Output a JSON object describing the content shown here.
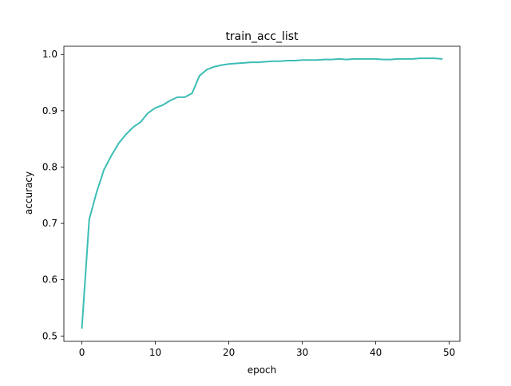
{
  "chart_data": {
    "type": "line",
    "title": "train_acc_list",
    "xlabel": "epoch",
    "ylabel": "accuracy",
    "xlim": [
      -2.45,
      51.45
    ],
    "ylim": [
      0.4905,
      1.0145
    ],
    "xticks": [
      0,
      10,
      20,
      30,
      40,
      50
    ],
    "yticks": [
      0.5,
      0.6,
      0.7,
      0.8,
      0.9,
      1.0
    ],
    "xtick_labels": [
      "0",
      "10",
      "20",
      "30",
      "40",
      "50"
    ],
    "ytick_labels": [
      "0.5",
      "0.6",
      "0.7",
      "0.8",
      "0.9",
      "1.0"
    ],
    "grid": false,
    "line_color": "#3dbdb6",
    "x": [
      0,
      1,
      2,
      3,
      4,
      5,
      6,
      7,
      8,
      9,
      10,
      11,
      12,
      13,
      14,
      15,
      16,
      17,
      18,
      19,
      20,
      21,
      22,
      23,
      24,
      25,
      26,
      27,
      28,
      29,
      30,
      31,
      32,
      33,
      34,
      35,
      36,
      37,
      38,
      39,
      40,
      41,
      42,
      43,
      44,
      45,
      46,
      47,
      48,
      49
    ],
    "series": [
      {
        "values": [
          0.514,
          0.707,
          0.755,
          0.795,
          0.82,
          0.842,
          0.858,
          0.871,
          0.88,
          0.896,
          0.905,
          0.91,
          0.918,
          0.924,
          0.924,
          0.931,
          0.962,
          0.973,
          0.978,
          0.981,
          0.983,
          0.984,
          0.985,
          0.986,
          0.986,
          0.987,
          0.988,
          0.988,
          0.989,
          0.989,
          0.99,
          0.99,
          0.99,
          0.991,
          0.991,
          0.992,
          0.991,
          0.992,
          0.992,
          0.992,
          0.992,
          0.991,
          0.991,
          0.992,
          0.992,
          0.992,
          0.993,
          0.993,
          0.993,
          0.992
        ]
      }
    ]
  }
}
